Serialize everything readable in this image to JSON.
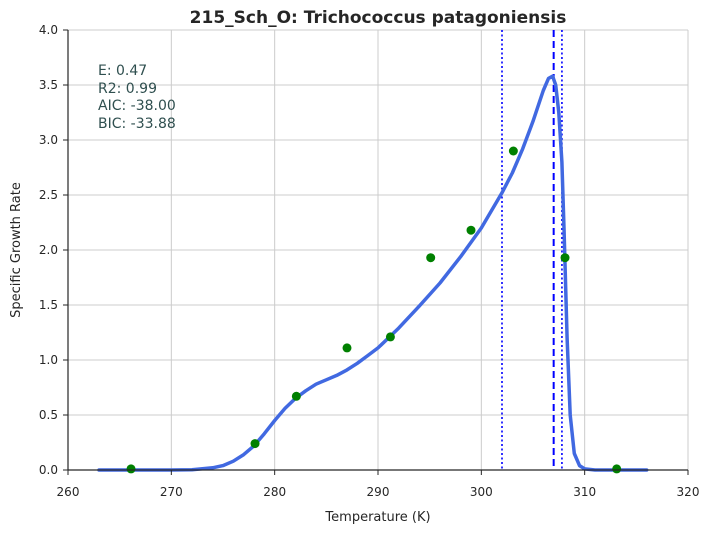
{
  "chart_data": {
    "type": "scatter",
    "title": "215_Sch_O: Trichococcus patagoniensis",
    "xlabel": "Temperature (K)",
    "ylabel": "Specific Growth Rate",
    "xlim": [
      260,
      320
    ],
    "ylim": [
      0.0,
      4.0
    ],
    "xticks": [
      260,
      270,
      280,
      290,
      300,
      310,
      320
    ],
    "yticks": [
      0.0,
      0.5,
      1.0,
      1.5,
      2.0,
      2.5,
      3.0,
      3.5,
      4.0
    ],
    "x_tick_labels": [
      "260",
      "270",
      "280",
      "290",
      "300",
      "310",
      "320"
    ],
    "y_tick_labels": [
      "0.0",
      "0.5",
      "1.0",
      "1.5",
      "2.0",
      "2.5",
      "3.0",
      "3.5",
      "4.0"
    ],
    "grid": true,
    "stats_text": [
      "E:  0.47",
      "R2:  0.99",
      "AIC: -38.00",
      "BIC: -33.88"
    ],
    "series": [
      {
        "kind": "points",
        "color": "#008000",
        "x": [
          266.1,
          278.1,
          282.1,
          287.0,
          291.2,
          295.1,
          299.0,
          303.1,
          308.1,
          313.1
        ],
        "y": [
          0.01,
          0.24,
          0.67,
          1.11,
          1.21,
          1.93,
          2.18,
          2.9,
          1.93,
          0.01
        ]
      },
      {
        "kind": "fit-curve",
        "color": "#4169e1",
        "x": [
          263.0,
          270.0,
          272.0,
          274.0,
          275.0,
          276.0,
          277.0,
          278.0,
          279.0,
          280.0,
          281.0,
          282.0,
          283.0,
          284.0,
          285.0,
          286.0,
          287.0,
          288.0,
          289.0,
          290.0,
          292.0,
          294.0,
          296.0,
          298.0,
          300.0,
          302.0,
          303.0,
          304.0,
          305.0,
          306.0,
          306.5,
          306.9,
          307.2,
          307.5,
          307.8,
          308.0,
          308.3,
          308.6,
          309.0,
          309.5,
          310.0,
          311.0,
          313.0,
          316.0
        ],
        "y": [
          0.0,
          0.0,
          0.003,
          0.02,
          0.04,
          0.08,
          0.14,
          0.22,
          0.33,
          0.45,
          0.56,
          0.65,
          0.72,
          0.78,
          0.82,
          0.86,
          0.91,
          0.97,
          1.04,
          1.11,
          1.29,
          1.49,
          1.7,
          1.94,
          2.2,
          2.52,
          2.7,
          2.92,
          3.17,
          3.45,
          3.56,
          3.58,
          3.5,
          3.25,
          2.8,
          2.2,
          1.2,
          0.5,
          0.15,
          0.04,
          0.01,
          0.0,
          0.0,
          0.0
        ]
      }
    ],
    "vertical_lines": [
      {
        "x": 302.0,
        "style": "dotted",
        "color": "#0000ff"
      },
      {
        "x": 307.0,
        "style": "dashed",
        "color": "#0000ff"
      },
      {
        "x": 307.8,
        "style": "dotted",
        "color": "#0000ff"
      }
    ]
  }
}
